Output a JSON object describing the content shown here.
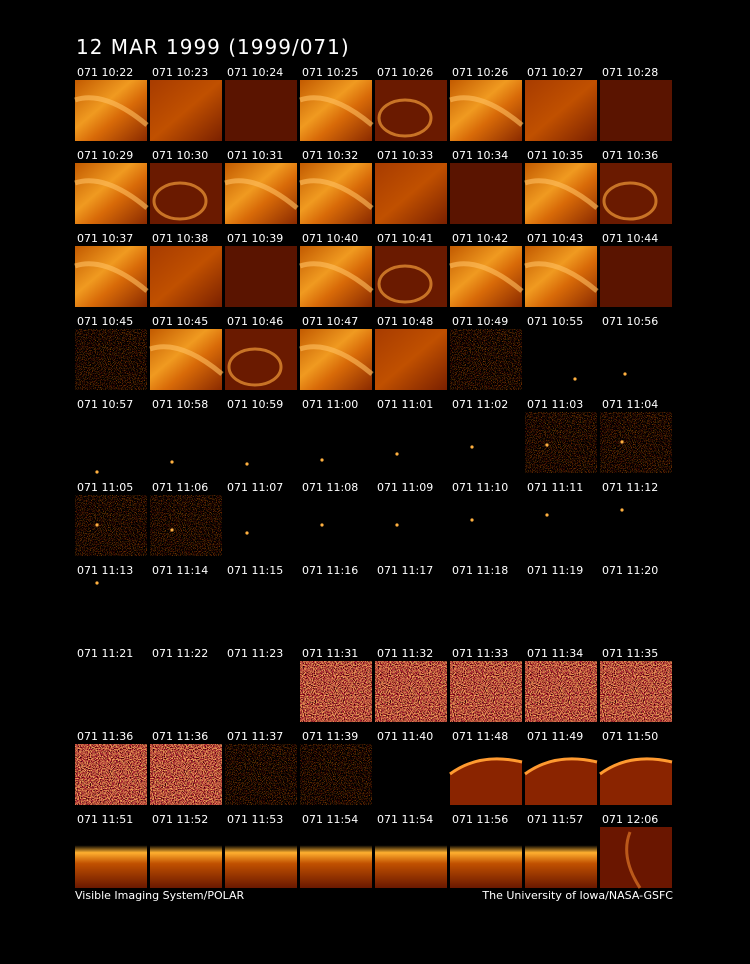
{
  "header": {
    "title": "12 MAR 1999  (1999/071)"
  },
  "panels": [
    "071 10:22",
    "071 10:23",
    "071 10:24",
    "071 10:25",
    "071 10:26",
    "071 10:26",
    "071 10:27",
    "071 10:28",
    "071 10:29",
    "071 10:30",
    "071 10:31",
    "071 10:32",
    "071 10:33",
    "071 10:34",
    "071 10:35",
    "071 10:36",
    "071 10:37",
    "071 10:38",
    "071 10:39",
    "071 10:40",
    "071 10:41",
    "071 10:42",
    "071 10:43",
    "071 10:44",
    "071 10:45",
    "071 10:45",
    "071 10:46",
    "071 10:47",
    "071 10:48",
    "071 10:49",
    "071 10:55",
    "071 10:56",
    "071 10:57",
    "071 10:58",
    "071 10:59",
    "071 11:00",
    "071 11:01",
    "071 11:02",
    "071 11:03",
    "071 11:04",
    "071 11:05",
    "071 11:06",
    "071 11:07",
    "071 11:08",
    "071 11:09",
    "071 11:10",
    "071 11:11",
    "071 11:12",
    "071 11:13",
    "071 11:14",
    "071 11:15",
    "071 11:16",
    "071 11:17",
    "071 11:18",
    "071 11:19",
    "071 11:20",
    "071 11:21",
    "071 11:22",
    "071 11:23",
    "071 11:31",
    "071 11:32",
    "071 11:33",
    "071 11:34",
    "071 11:35",
    "071 11:36",
    "071 11:36",
    "071 11:37",
    "071 11:39",
    "071 11:40",
    "071 11:48",
    "071 11:49",
    "071 11:50",
    "071 11:51",
    "071 11:52",
    "071 11:53",
    "071 11:54",
    "071 11:54",
    "071 11:56",
    "071 11:57",
    "071 12:06"
  ],
  "footer": {
    "left": "Visible Imaging System/POLAR",
    "right": "The University of Iowa/NASA-GSFC"
  }
}
